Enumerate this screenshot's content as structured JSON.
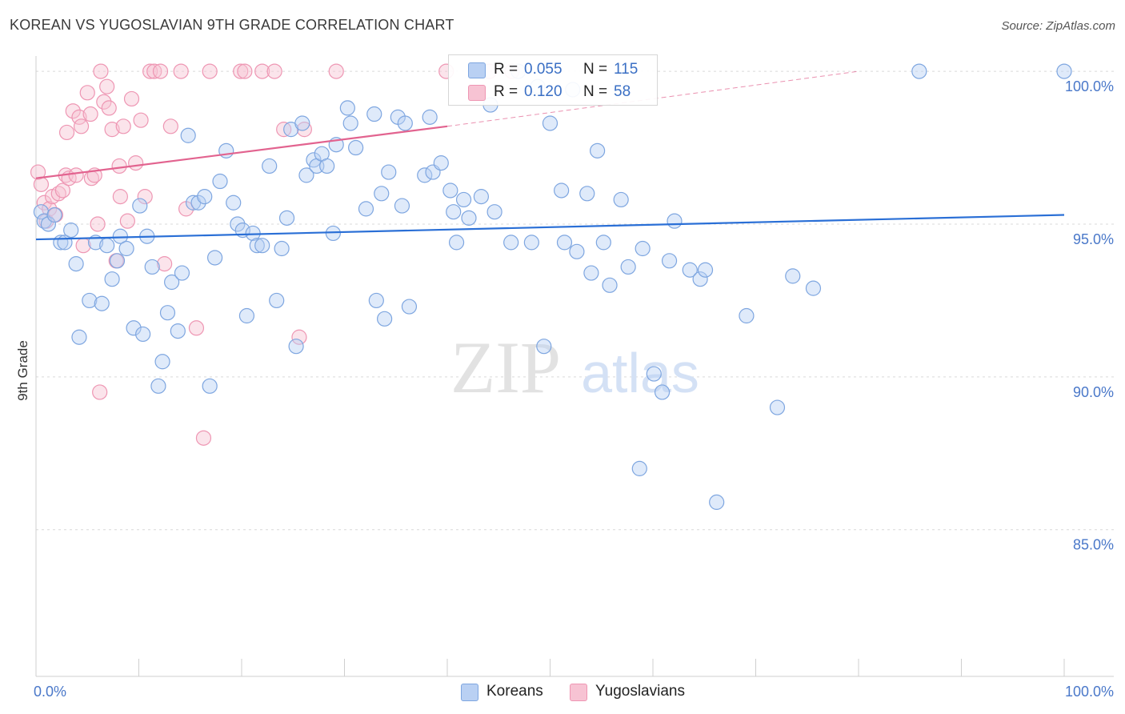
{
  "header": {
    "title": "KOREAN VS YUGOSLAVIAN 9TH GRADE CORRELATION CHART",
    "source": "Source: ZipAtlas.com"
  },
  "legend": {
    "koreans": {
      "r_label": "R =",
      "r_value": "0.055",
      "n_label": "N =",
      "n_value": "115",
      "name": "Koreans"
    },
    "yugoslavians": {
      "r_label": "R =",
      "r_value": "0.120",
      "n_label": "N =",
      "n_value": "58",
      "name": "Yugoslavians"
    }
  },
  "watermark": {
    "zip": "ZIP",
    "atlas": "atlas"
  },
  "chart_data": {
    "type": "scatter",
    "title": "KOREAN VS YUGOSLAVIAN 9TH GRADE CORRELATION CHART",
    "xlabel": "",
    "ylabel": "9th Grade",
    "xlim": [
      0,
      100
    ],
    "ylim": [
      80.2,
      100.5
    ],
    "x_tick_labels": [
      "0.0%",
      "100.0%"
    ],
    "y_ticks": [
      85,
      90,
      95,
      100
    ],
    "y_tick_labels": [
      "85.0%",
      "90.0%",
      "95.0%",
      "100.0%"
    ],
    "grid": true,
    "colors": {
      "koreans_fill": "#b9d0f3",
      "koreans_stroke": "#7ea6e0",
      "koreans_line": "#2a6fd6",
      "yugoslavians_fill": "#f7c3d3",
      "yugoslavians_stroke": "#ee96b3",
      "yugoslavians_line": "#e2638f",
      "tick_label": "#4a78c9",
      "grid": "#d9d9d9"
    },
    "series": [
      {
        "name": "Koreans",
        "trend": {
          "x": [
            0,
            100
          ],
          "y": [
            94.5,
            95.3
          ]
        },
        "points": [
          [
            0.5,
            95.4
          ],
          [
            0.8,
            95.1
          ],
          [
            1.2,
            95.0
          ],
          [
            1.8,
            95.3
          ],
          [
            2.4,
            94.4
          ],
          [
            2.8,
            94.4
          ],
          [
            3.4,
            94.8
          ],
          [
            3.9,
            93.7
          ],
          [
            4.2,
            91.3
          ],
          [
            5.2,
            92.5
          ],
          [
            5.8,
            94.4
          ],
          [
            6.4,
            92.4
          ],
          [
            6.9,
            94.3
          ],
          [
            7.4,
            93.2
          ],
          [
            7.9,
            93.8
          ],
          [
            8.2,
            94.6
          ],
          [
            8.8,
            94.2
          ],
          [
            9.5,
            91.6
          ],
          [
            10.1,
            95.6
          ],
          [
            10.4,
            91.4
          ],
          [
            10.8,
            94.6
          ],
          [
            11.3,
            93.6
          ],
          [
            11.9,
            89.7
          ],
          [
            12.3,
            90.5
          ],
          [
            12.8,
            92.1
          ],
          [
            13.2,
            93.1
          ],
          [
            13.8,
            91.5
          ],
          [
            14.2,
            93.4
          ],
          [
            14.8,
            97.9
          ],
          [
            15.3,
            95.7
          ],
          [
            15.8,
            95.7
          ],
          [
            16.4,
            95.9
          ],
          [
            16.9,
            89.7
          ],
          [
            17.4,
            93.9
          ],
          [
            17.9,
            96.4
          ],
          [
            18.5,
            97.4
          ],
          [
            19.2,
            95.7
          ],
          [
            19.6,
            95.0
          ],
          [
            20.1,
            94.8
          ],
          [
            20.5,
            92.0
          ],
          [
            21.1,
            94.7
          ],
          [
            21.5,
            94.3
          ],
          [
            22.0,
            94.3
          ],
          [
            22.7,
            96.9
          ],
          [
            23.4,
            92.5
          ],
          [
            23.9,
            94.2
          ],
          [
            24.4,
            95.2
          ],
          [
            24.8,
            98.1
          ],
          [
            25.3,
            91.0
          ],
          [
            25.9,
            98.3
          ],
          [
            26.3,
            96.6
          ],
          [
            27.0,
            97.1
          ],
          [
            27.3,
            96.9
          ],
          [
            27.8,
            97.3
          ],
          [
            28.3,
            96.9
          ],
          [
            28.9,
            94.7
          ],
          [
            29.2,
            97.6
          ],
          [
            30.3,
            98.8
          ],
          [
            30.6,
            98.3
          ],
          [
            31.1,
            97.5
          ],
          [
            32.1,
            95.5
          ],
          [
            32.9,
            98.6
          ],
          [
            33.1,
            92.5
          ],
          [
            33.6,
            96.0
          ],
          [
            33.9,
            91.9
          ],
          [
            34.3,
            96.7
          ],
          [
            35.2,
            98.5
          ],
          [
            35.6,
            95.6
          ],
          [
            35.9,
            98.3
          ],
          [
            36.3,
            92.3
          ],
          [
            37.8,
            96.6
          ],
          [
            38.3,
            98.5
          ],
          [
            38.6,
            96.7
          ],
          [
            39.4,
            97.0
          ],
          [
            40.3,
            96.1
          ],
          [
            40.6,
            95.4
          ],
          [
            40.9,
            94.4
          ],
          [
            41.6,
            95.8
          ],
          [
            42.1,
            95.2
          ],
          [
            43.3,
            95.9
          ],
          [
            44.2,
            98.9
          ],
          [
            44.6,
            95.4
          ],
          [
            46.2,
            94.4
          ],
          [
            46.9,
            100.0
          ],
          [
            48.2,
            94.4
          ],
          [
            48.8,
            99.5
          ],
          [
            49.4,
            91.0
          ],
          [
            50.0,
            98.3
          ],
          [
            51.1,
            96.1
          ],
          [
            51.4,
            94.4
          ],
          [
            52.2,
            99.4
          ],
          [
            52.6,
            94.1
          ],
          [
            53.6,
            96.0
          ],
          [
            54.0,
            93.4
          ],
          [
            54.6,
            97.4
          ],
          [
            55.2,
            94.4
          ],
          [
            55.8,
            93.0
          ],
          [
            56.9,
            95.8
          ],
          [
            57.6,
            93.6
          ],
          [
            58.7,
            87.0
          ],
          [
            59.0,
            94.2
          ],
          [
            60.1,
            90.1
          ],
          [
            60.9,
            89.5
          ],
          [
            61.6,
            93.8
          ],
          [
            62.1,
            95.1
          ],
          [
            63.6,
            93.5
          ],
          [
            64.6,
            93.2
          ],
          [
            65.1,
            93.5
          ],
          [
            66.2,
            85.9
          ],
          [
            69.1,
            92.0
          ],
          [
            72.1,
            89.0
          ],
          [
            73.6,
            93.3
          ],
          [
            75.6,
            92.9
          ],
          [
            85.9,
            100.0
          ],
          [
            100.0,
            100.0
          ]
        ]
      },
      {
        "name": "Yugoslavians",
        "trend": {
          "x": [
            0,
            40
          ],
          "y": [
            96.5,
            98.2
          ]
        },
        "trend_dashed": {
          "x": [
            40,
            80
          ],
          "y": [
            98.2,
            100.0
          ]
        },
        "points": [
          [
            0.2,
            96.7
          ],
          [
            0.5,
            96.3
          ],
          [
            0.8,
            95.7
          ],
          [
            1.0,
            95.1
          ],
          [
            1.3,
            95.5
          ],
          [
            1.6,
            95.9
          ],
          [
            1.9,
            95.3
          ],
          [
            2.2,
            96.0
          ],
          [
            2.6,
            96.1
          ],
          [
            2.9,
            96.6
          ],
          [
            3.2,
            96.5
          ],
          [
            3.6,
            98.7
          ],
          [
            3.0,
            98.0
          ],
          [
            3.9,
            96.6
          ],
          [
            4.2,
            98.5
          ],
          [
            4.4,
            98.2
          ],
          [
            4.6,
            94.3
          ],
          [
            5.0,
            99.3
          ],
          [
            5.4,
            96.5
          ],
          [
            5.7,
            96.6
          ],
          [
            5.3,
            98.6
          ],
          [
            6.0,
            95.0
          ],
          [
            6.3,
            100.0
          ],
          [
            6.6,
            99.0
          ],
          [
            6.9,
            99.5
          ],
          [
            7.1,
            98.8
          ],
          [
            7.4,
            98.1
          ],
          [
            7.8,
            93.8
          ],
          [
            8.1,
            96.9
          ],
          [
            8.5,
            98.2
          ],
          [
            8.2,
            95.9
          ],
          [
            8.9,
            95.1
          ],
          [
            9.3,
            99.1
          ],
          [
            9.7,
            97.0
          ],
          [
            10.2,
            98.4
          ],
          [
            10.6,
            95.9
          ],
          [
            11.1,
            100.0
          ],
          [
            11.5,
            100.0
          ],
          [
            12.1,
            100.0
          ],
          [
            12.5,
            93.7
          ],
          [
            13.1,
            98.2
          ],
          [
            14.1,
            100.0
          ],
          [
            14.6,
            95.5
          ],
          [
            15.6,
            91.6
          ],
          [
            16.3,
            88.0
          ],
          [
            16.9,
            100.0
          ],
          [
            19.9,
            100.0
          ],
          [
            20.3,
            100.0
          ],
          [
            22.0,
            100.0
          ],
          [
            23.2,
            100.0
          ],
          [
            24.1,
            98.1
          ],
          [
            25.6,
            91.3
          ],
          [
            26.1,
            98.1
          ],
          [
            29.2,
            100.0
          ],
          [
            39.9,
            100.0
          ],
          [
            44.1,
            100.0
          ],
          [
            46.3,
            100.0
          ],
          [
            6.2,
            89.5
          ]
        ]
      }
    ]
  }
}
